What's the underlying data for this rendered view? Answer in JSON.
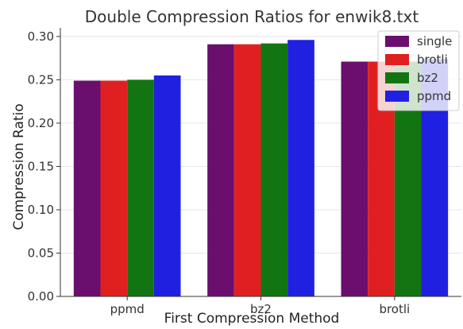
{
  "chart_data": {
    "type": "bar",
    "title": "Double Compression Ratios for enwik8.txt",
    "xlabel": "First Compression Method",
    "ylabel": "Compression Ratio",
    "categories": [
      "ppmd",
      "bz2",
      "brotli"
    ],
    "ylim": [
      0,
      0.31
    ],
    "yticks": [
      "0.00",
      "0.05",
      "0.10",
      "0.15",
      "0.20",
      "0.25",
      "0.30"
    ],
    "grid": true,
    "legend_position": "top-right",
    "series": [
      {
        "name": "single",
        "color": "#6a0f6e",
        "values": [
          0.249,
          0.291,
          0.271
        ]
      },
      {
        "name": "brotli",
        "color": "#e02020",
        "values": [
          0.249,
          0.291,
          0.271
        ]
      },
      {
        "name": "bz2",
        "color": "#127512",
        "values": [
          0.25,
          0.292,
          0.271
        ]
      },
      {
        "name": "ppmd",
        "color": "#2020e0",
        "values": [
          0.255,
          0.296,
          0.274
        ]
      }
    ]
  }
}
